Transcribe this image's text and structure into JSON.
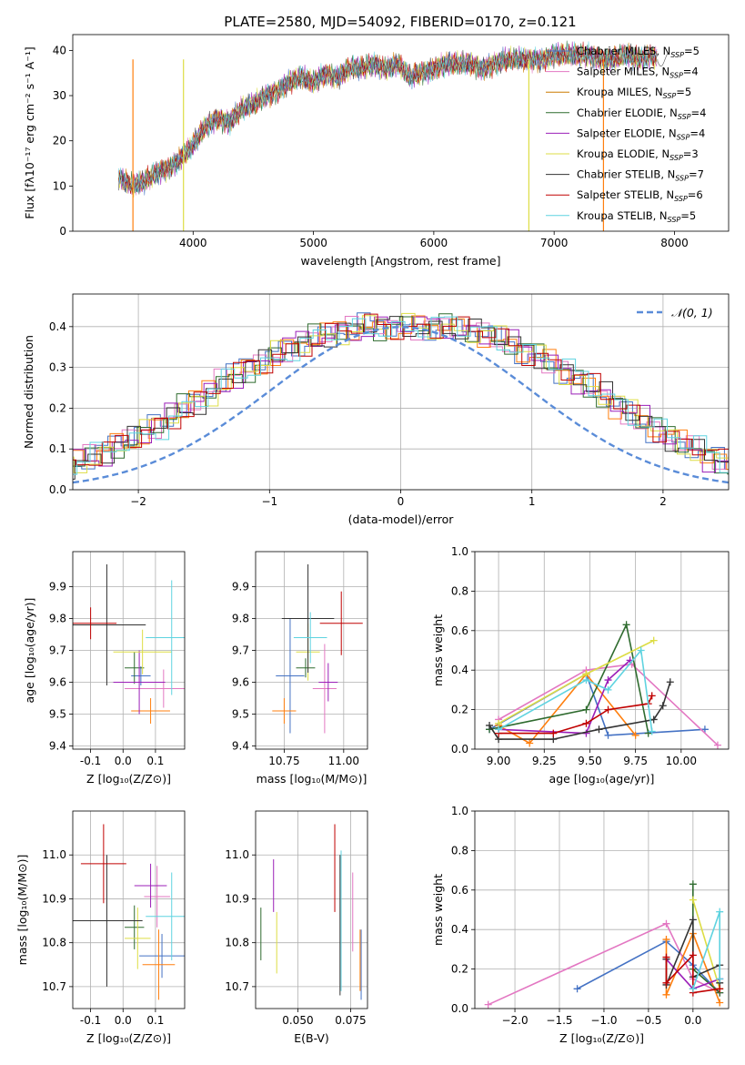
{
  "colors": [
    "#4472c4",
    "#e377c2",
    "#ff7f0e",
    "#2f6b2f",
    "#9b1fb8",
    "#dddd44",
    "#333333",
    "#c00000",
    "#5fd3e0"
  ],
  "legend": [
    {
      "label": "Chabrier MILES, N",
      "sub": "SSP",
      "suffix": "=5",
      "color": "#4472c4"
    },
    {
      "label": "Salpeter MILES, N",
      "sub": "SSP",
      "suffix": "=4",
      "color": "#e377c2"
    },
    {
      "label": "Kroupa MILES, N",
      "sub": "SSP",
      "suffix": "=5",
      "color": "#cc7a00"
    },
    {
      "label": "Chabrier ELODIE, N",
      "sub": "SSP",
      "suffix": "=4",
      "color": "#2f6b2f"
    },
    {
      "label": "Salpeter ELODIE, N",
      "sub": "SSP",
      "suffix": "=4",
      "color": "#9b1fb8"
    },
    {
      "label": "Kroupa ELODIE, N",
      "sub": "SSP",
      "suffix": "=3",
      "color": "#dddd44"
    },
    {
      "label": "Chabrier STELIB, N",
      "sub": "SSP",
      "suffix": "=7",
      "color": "#333333"
    },
    {
      "label": "Salpeter STELIB, N",
      "sub": "SSP",
      "suffix": "=6",
      "color": "#c00000"
    },
    {
      "label": "Kroupa STELIB, N",
      "sub": "SSP",
      "suffix": "=5",
      "color": "#5fd3e0"
    }
  ],
  "chart_data": [
    {
      "type": "line",
      "title": "PLATE=2580, MJD=54092, FIBERID=0170, z=0.121",
      "xlabel": "wavelength [Angstrom, rest frame]",
      "ylabel": "Flux [fλ10⁻¹⁷ erg cm⁻² s⁻¹ A⁻¹]",
      "xlim": [
        3000,
        8450
      ],
      "ylim": [
        0,
        43.5
      ],
      "xticks": [
        4000,
        5000,
        6000,
        7000,
        8000
      ],
      "yticks": [
        0,
        10,
        20,
        30,
        40
      ],
      "spectrum_points": [
        [
          3380,
          12
        ],
        [
          3500,
          10
        ],
        [
          3600,
          11
        ],
        [
          3700,
          13
        ],
        [
          3800,
          14
        ],
        [
          3900,
          16
        ],
        [
          4000,
          19
        ],
        [
          4100,
          23
        ],
        [
          4200,
          25
        ],
        [
          4300,
          24
        ],
        [
          4400,
          27
        ],
        [
          4500,
          28
        ],
        [
          4600,
          30
        ],
        [
          4700,
          31
        ],
        [
          4800,
          33
        ],
        [
          4900,
          34
        ],
        [
          5000,
          33
        ],
        [
          5100,
          35
        ],
        [
          5200,
          34
        ],
        [
          5300,
          36
        ],
        [
          5400,
          36
        ],
        [
          5500,
          37
        ],
        [
          5600,
          36
        ],
        [
          5700,
          37
        ],
        [
          5800,
          34
        ],
        [
          5900,
          35
        ],
        [
          6000,
          36
        ],
        [
          6100,
          37
        ],
        [
          6200,
          37
        ],
        [
          6300,
          37
        ],
        [
          6400,
          36
        ],
        [
          6500,
          37
        ],
        [
          6600,
          38
        ],
        [
          6700,
          38
        ],
        [
          6800,
          38
        ],
        [
          6900,
          38
        ],
        [
          7000,
          39
        ],
        [
          7100,
          39
        ],
        [
          7200,
          39
        ],
        [
          7300,
          39
        ],
        [
          7400,
          38
        ],
        [
          7500,
          38
        ],
        [
          7600,
          39
        ],
        [
          7700,
          38
        ],
        [
          7800,
          39
        ],
        [
          7860,
          38
        ]
      ],
      "dropouts": [
        3500,
        3920,
        6790,
        7410
      ]
    },
    {
      "type": "bar",
      "name": "residual histogram",
      "xlabel": "(data-model)/error",
      "ylabel": "Normed distribution",
      "xlim": [
        -2.5,
        2.5
      ],
      "ylim": [
        0,
        0.48
      ],
      "xticks": [
        -2,
        -1,
        0,
        1,
        2
      ],
      "yticks": [
        0,
        0.1,
        0.2,
        0.3,
        0.4
      ],
      "bin_width": 0.1,
      "base_values": [
        0.02,
        0.03,
        0.04,
        0.05,
        0.06,
        0.07,
        0.08,
        0.09,
        0.11,
        0.12,
        0.14,
        0.16,
        0.18,
        0.2,
        0.22,
        0.24,
        0.26,
        0.28,
        0.3,
        0.31,
        0.33,
        0.35,
        0.36,
        0.37,
        0.38,
        0.39,
        0.39,
        0.4,
        0.4,
        0.4,
        0.4,
        0.4,
        0.4,
        0.4,
        0.39,
        0.39,
        0.38,
        0.37,
        0.36,
        0.34,
        0.33,
        0.31,
        0.29,
        0.27,
        0.25,
        0.23,
        0.21,
        0.19,
        0.17,
        0.15,
        0.13,
        0.11,
        0.1,
        0.08,
        0.07,
        0.06,
        0.05,
        0.04,
        0.04,
        0.03
      ],
      "normal_label": "𝒩(0, 1)"
    },
    {
      "type": "scatter",
      "name": "age vs Z",
      "xlabel": "Z [log₁₀(Z/Z⊙)]",
      "ylabel": "age  [log₁₀(age/yr)]",
      "xlim": [
        -0.155,
        0.19
      ],
      "ylim": [
        9.39,
        10.01
      ],
      "xticks": [
        -0.1,
        0.0,
        0.1
      ],
      "yticks": [
        9.4,
        9.5,
        9.6,
        9.7,
        9.8,
        9.9
      ],
      "points": [
        [
          0.055,
          9.62,
          0.03,
          0.03
        ],
        [
          0.125,
          9.58,
          0.12,
          0.06
        ],
        [
          0.085,
          9.51,
          0.06,
          0.04
        ],
        [
          0.035,
          9.645,
          0.03,
          0.05
        ],
        [
          0.05,
          9.6,
          0.08,
          0.1
        ],
        [
          0.06,
          9.695,
          0.09,
          0.07
        ],
        [
          -0.05,
          9.78,
          0.12,
          0.19
        ],
        [
          -0.1,
          9.785,
          0.08,
          0.05
        ],
        [
          0.15,
          9.74,
          0.08,
          0.18
        ]
      ]
    },
    {
      "type": "scatter",
      "name": "age vs mass",
      "xlabel": "mass [log₁₀(M/M⊙)]",
      "ylabel": "",
      "xlim": [
        10.63,
        11.1
      ],
      "ylim": [
        9.39,
        10.01
      ],
      "xticks": [
        10.75,
        11.0
      ],
      "yticks": [
        9.4,
        9.5,
        9.6,
        9.7,
        9.8,
        9.9
      ],
      "points": [
        [
          10.775,
          9.62,
          0.06,
          0.18
        ],
        [
          10.92,
          9.58,
          0.05,
          0.14
        ],
        [
          10.75,
          9.51,
          0.05,
          0.04
        ],
        [
          10.84,
          9.645,
          0.04,
          0.03
        ],
        [
          10.935,
          9.6,
          0.04,
          0.06
        ],
        [
          10.85,
          9.695,
          0.05,
          0.09
        ],
        [
          10.85,
          9.8,
          0.11,
          0.17
        ],
        [
          10.99,
          9.785,
          0.09,
          0.1
        ],
        [
          10.86,
          9.74,
          0.07,
          0.08
        ]
      ]
    },
    {
      "type": "line",
      "name": "mass weight vs age",
      "xlabel": "age  [log₁₀(age/yr)]",
      "ylabel": "mass weight",
      "xlim": [
        8.87,
        10.26
      ],
      "ylim": [
        0,
        1
      ],
      "xticks": [
        9.0,
        9.25,
        9.5,
        9.75,
        10.0
      ],
      "yticks": [
        0,
        0.2,
        0.4,
        0.6,
        0.8,
        1.0
      ],
      "series": [
        [
          [
            8.95,
            0.1
          ],
          [
            9.48,
            0.38
          ],
          [
            9.6,
            0.07
          ],
          [
            10.13,
            0.1
          ]
        ],
        [
          [
            9.0,
            0.15
          ],
          [
            9.48,
            0.4
          ],
          [
            9.73,
            0.43
          ],
          [
            10.2,
            0.02
          ]
        ],
        [
          [
            9.0,
            0.12
          ],
          [
            9.17,
            0.03
          ],
          [
            9.48,
            0.38
          ],
          [
            9.75,
            0.07
          ]
        ],
        [
          [
            8.95,
            0.1
          ],
          [
            9.48,
            0.2
          ],
          [
            9.7,
            0.63
          ],
          [
            9.82,
            0.08
          ]
        ],
        [
          [
            9.0,
            0.1
          ],
          [
            9.48,
            0.08
          ],
          [
            9.6,
            0.35
          ],
          [
            9.72,
            0.45
          ]
        ],
        [
          [
            9.0,
            0.13
          ],
          [
            9.48,
            0.38
          ],
          [
            9.85,
            0.55
          ]
        ],
        [
          [
            8.95,
            0.12
          ],
          [
            9.0,
            0.05
          ],
          [
            9.3,
            0.05
          ],
          [
            9.55,
            0.1
          ],
          [
            9.85,
            0.15
          ],
          [
            9.9,
            0.22
          ],
          [
            9.94,
            0.34
          ]
        ],
        [
          [
            9.0,
            0.08
          ],
          [
            9.3,
            0.08
          ],
          [
            9.48,
            0.13
          ],
          [
            9.6,
            0.2
          ],
          [
            9.82,
            0.23
          ],
          [
            9.84,
            0.27
          ]
        ],
        [
          [
            9.0,
            0.1
          ],
          [
            9.48,
            0.35
          ],
          [
            9.6,
            0.3
          ],
          [
            9.78,
            0.5
          ],
          [
            9.84,
            0.09
          ]
        ]
      ]
    },
    {
      "type": "scatter",
      "name": "mass vs Z",
      "xlabel": "Z [log₁₀(Z/Z⊙)]",
      "ylabel": "mass [log₁₀(M/M⊙)]",
      "xlim": [
        -0.155,
        0.19
      ],
      "ylim": [
        10.65,
        11.1
      ],
      "xticks": [
        -0.1,
        0.0,
        0.1
      ],
      "yticks": [
        10.7,
        10.8,
        10.9,
        11.0
      ],
      "points": [
        [
          0.12,
          10.77,
          0.07,
          0.05
        ],
        [
          0.105,
          10.905,
          0.04,
          0.07
        ],
        [
          0.11,
          10.75,
          0.05,
          0.08
        ],
        [
          0.035,
          10.835,
          0.03,
          0.05
        ],
        [
          0.085,
          10.93,
          0.05,
          0.05
        ],
        [
          0.045,
          10.81,
          0.04,
          0.07
        ],
        [
          -0.05,
          10.85,
          0.11,
          0.15
        ],
        [
          -0.06,
          10.98,
          0.07,
          0.09
        ],
        [
          0.15,
          10.86,
          0.08,
          0.1
        ]
      ]
    },
    {
      "type": "scatter",
      "name": "mass vs E(B-V)",
      "xlabel": "E(B-V)",
      "ylabel": "",
      "xlim": [
        0.03,
        0.083
      ],
      "ylim": [
        10.65,
        11.1
      ],
      "xticks": [
        0.05,
        0.075
      ],
      "yticks": [
        10.7,
        10.8,
        10.9,
        11.0
      ],
      "points": [
        [
          0.08,
          10.75,
          0.0,
          0.08
        ],
        [
          0.076,
          10.87,
          0.0,
          0.09
        ],
        [
          0.0795,
          10.76,
          0.0,
          0.07
        ],
        [
          0.0325,
          10.82,
          0.0,
          0.06
        ],
        [
          0.0385,
          10.93,
          0.0,
          0.06
        ],
        [
          0.04,
          10.8,
          0.0,
          0.07
        ],
        [
          0.07,
          10.84,
          0.0,
          0.16
        ],
        [
          0.0675,
          10.97,
          0.0,
          0.1
        ],
        [
          0.0705,
          10.85,
          0.0,
          0.16
        ]
      ]
    },
    {
      "type": "line",
      "name": "mass weight vs Z",
      "xlabel": "Z [log₁₀(Z/Z⊙)]",
      "ylabel": "mass weight",
      "xlim": [
        -2.45,
        0.4
      ],
      "ylim": [
        0,
        1
      ],
      "xticks": [
        -2.0,
        -1.5,
        -1.0,
        -0.5,
        0.0
      ],
      "yticks": [
        0,
        0.2,
        0.4,
        0.6,
        0.8,
        1.0
      ],
      "series": [
        [
          [
            -1.3,
            0.1
          ],
          [
            -0.3,
            0.34
          ],
          [
            0.0,
            0.22
          ],
          [
            0.3,
            0.08
          ]
        ],
        [
          [
            -2.3,
            0.02
          ],
          [
            -0.3,
            0.43
          ],
          [
            0.0,
            0.15
          ],
          [
            0.3,
            0.08
          ]
        ],
        [
          [
            -0.3,
            0.35
          ],
          [
            -0.3,
            0.07
          ],
          [
            0.0,
            0.38
          ],
          [
            0.3,
            0.03
          ]
        ],
        [
          [
            0.0,
            0.63
          ],
          [
            0.0,
            0.2
          ],
          [
            0.3,
            0.08
          ]
        ],
        [
          [
            -0.3,
            0.25
          ],
          [
            0.0,
            0.1
          ],
          [
            0.3,
            0.15
          ]
        ],
        [
          [
            0.0,
            0.55
          ],
          [
            0.3,
            0.1
          ]
        ],
        [
          [
            -0.3,
            0.25
          ],
          [
            -0.3,
            0.12
          ],
          [
            0.0,
            0.45
          ],
          [
            0.0,
            0.16
          ],
          [
            0.3,
            0.22
          ],
          [
            0.3,
            0.13
          ]
        ],
        [
          [
            -0.3,
            0.26
          ],
          [
            -0.3,
            0.13
          ],
          [
            0.0,
            0.27
          ],
          [
            0.0,
            0.08
          ],
          [
            0.3,
            0.1
          ]
        ],
        [
          [
            0.0,
            0.1
          ],
          [
            0.3,
            0.49
          ],
          [
            0.3,
            0.15
          ]
        ]
      ]
    }
  ]
}
